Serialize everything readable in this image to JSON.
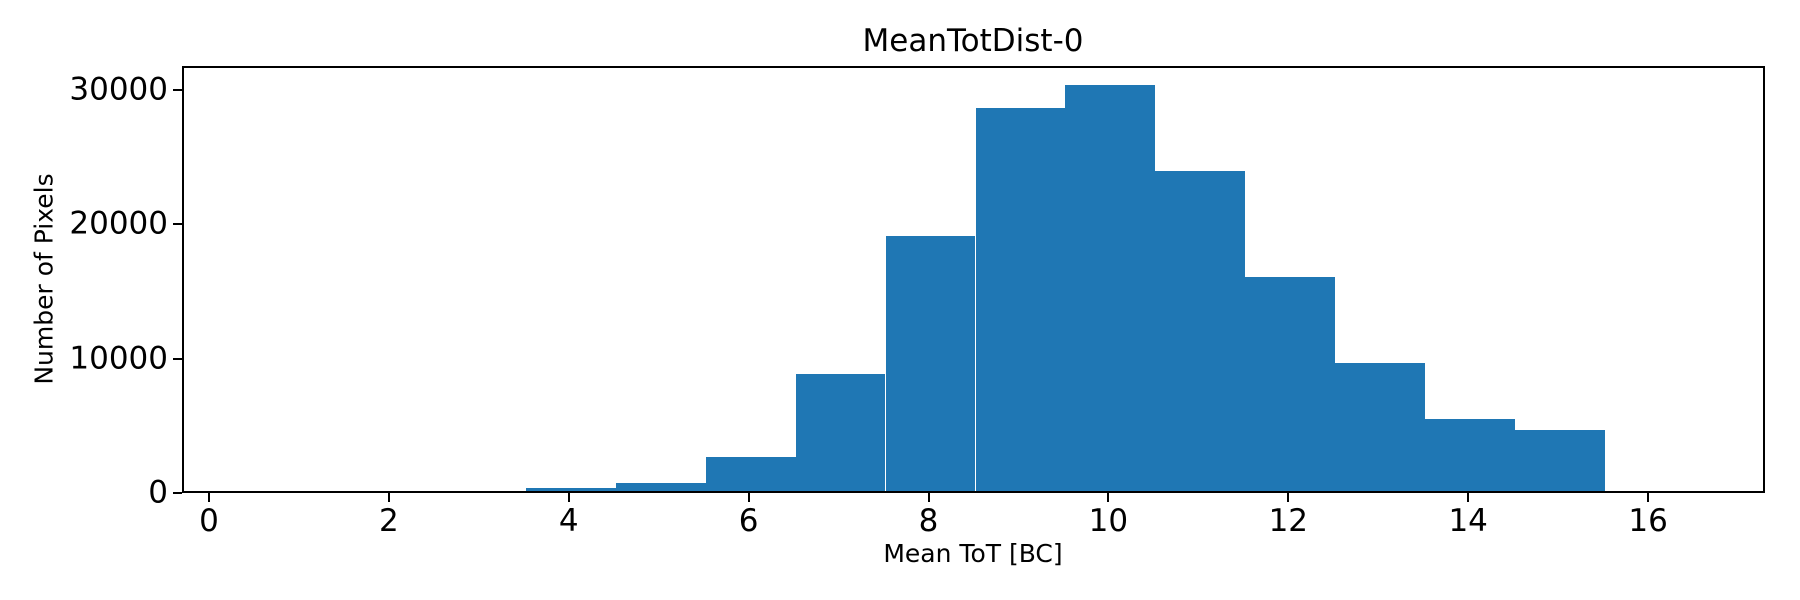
{
  "title": "MeanTotDist-0",
  "xlabel": "Mean ToT [BC]",
  "ylabel": "Number of Pixels",
  "colors": {
    "bar": "#1f77b4",
    "axis": "#000000",
    "background": "#ffffff"
  },
  "chart_data": {
    "type": "bar",
    "subtype": "histogram",
    "title": "MeanTotDist-0",
    "xlabel": "Mean ToT [BC]",
    "ylabel": "Number of Pixels",
    "bin_edges": [
      3.5,
      4.5,
      5.5,
      6.5,
      7.5,
      8.5,
      9.5,
      10.5,
      11.5,
      12.5,
      13.5,
      14.5,
      15.5
    ],
    "counts": [
      250,
      600,
      2550,
      8700,
      19000,
      28550,
      30230,
      23850,
      15950,
      9530,
      5370,
      4530
    ],
    "xlim": [
      -0.3,
      17.3
    ],
    "ylim": [
      0,
      31800
    ],
    "xticks": [
      0,
      2,
      4,
      6,
      8,
      10,
      12,
      14,
      16
    ],
    "yticks": [
      0,
      10000,
      20000,
      30000
    ],
    "grid": false,
    "legend": null
  }
}
